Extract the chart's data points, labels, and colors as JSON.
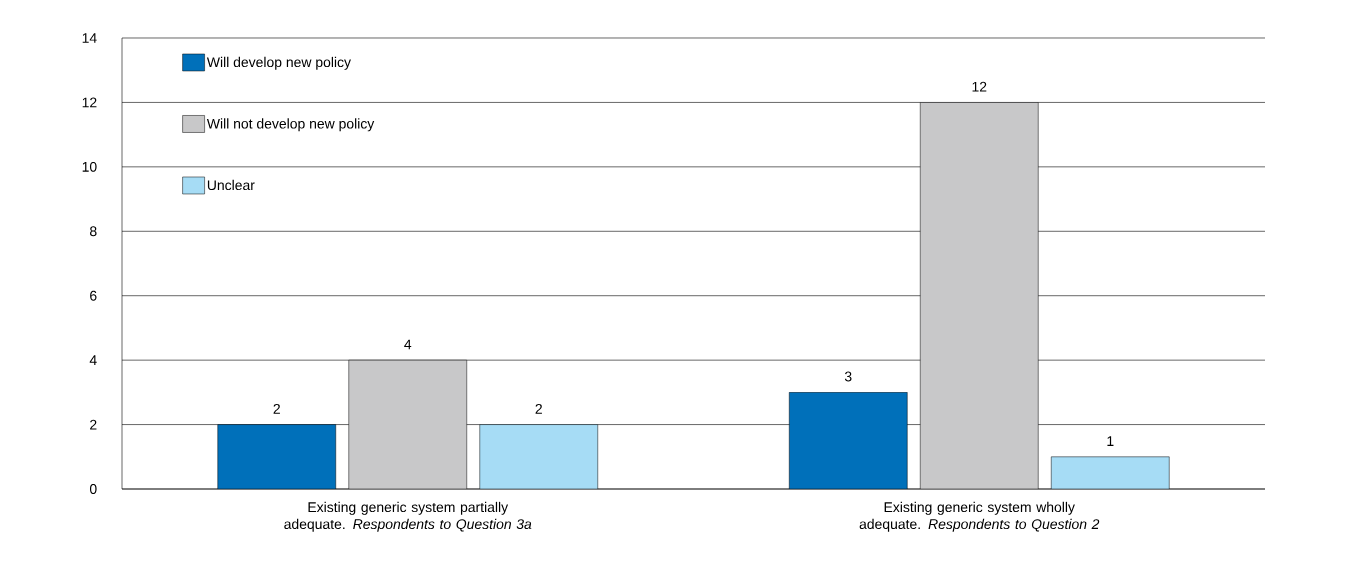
{
  "chart_data": {
    "type": "bar",
    "categories": [
      "Existing generic system partially adequate. *Respondents to Question 3a*",
      "Existing generic system wholly adequate. *Respondents to Question 2*"
    ],
    "series": [
      {
        "name": "Will develop new policy",
        "color": "#0070ba",
        "values": [
          2,
          3
        ]
      },
      {
        "name": "Will not develop new policy",
        "color": "#c8c8c9",
        "values": [
          4,
          12
        ]
      },
      {
        "name": "Unclear",
        "color": "#a6dcf5",
        "values": [
          2,
          1
        ]
      }
    ],
    "ylim": [
      0,
      14
    ],
    "yticks": [
      0,
      2,
      4,
      6,
      8,
      10,
      12,
      14
    ],
    "grid": "y",
    "legend": "top left",
    "data_labels": true
  }
}
